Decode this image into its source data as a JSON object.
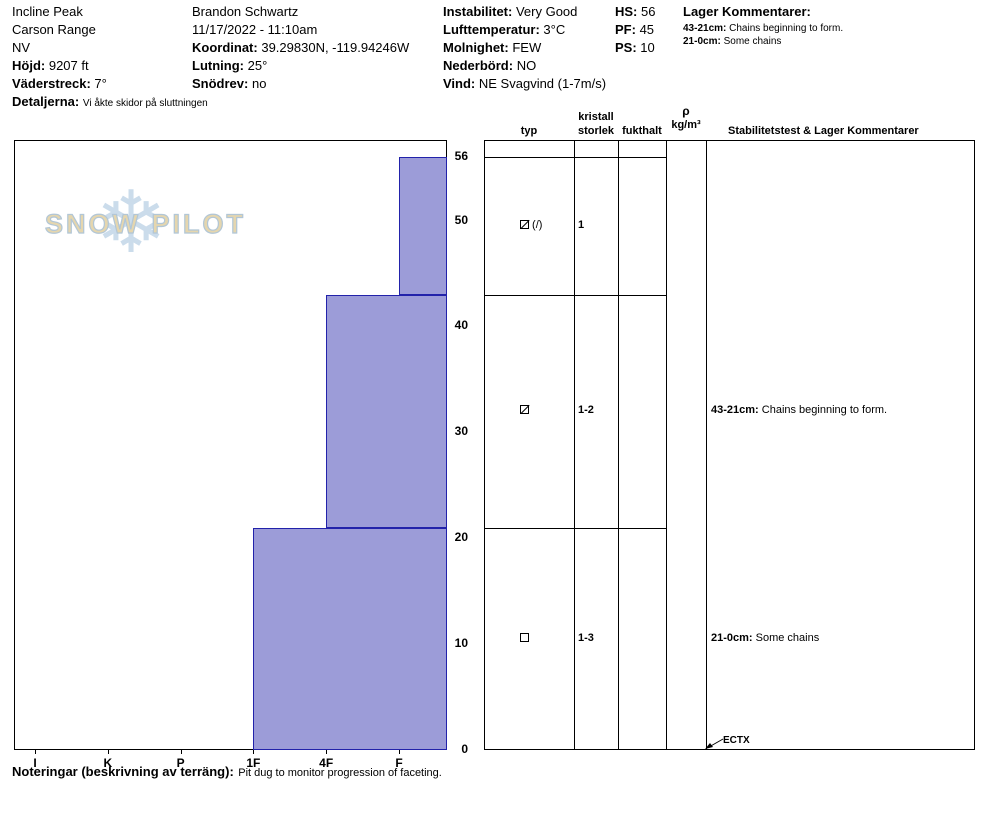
{
  "header": {
    "site": {
      "name": "Incline Peak",
      "range": "Carson Range",
      "state": "NV",
      "elevation_label": "Höjd:",
      "elevation_value": "9207 ft",
      "aspect_label": "Väderstreck:",
      "aspect_value": "7°",
      "details_label": "Detaljerna:",
      "details_value": "Vi åkte skidor på sluttningen"
    },
    "observer": {
      "name": "Brandon Schwartz",
      "datetime": "11/17/2022 - 11:10am",
      "coord_label": "Koordinat:",
      "coord_value": "39.29830N, -119.94246W",
      "slope_label": "Lutning:",
      "slope_value": "25°",
      "snowdrift_label": "Snödrev:",
      "snowdrift_value": "no"
    },
    "weather": {
      "instability_label": "Instabilitet:",
      "instability_value": "Very Good",
      "airtemp_label": "Lufttemperatur:",
      "airtemp_value": "3°C",
      "sky_label": "Molnighet:",
      "sky_value": "FEW",
      "precip_label": "Nederbörd:",
      "precip_value": "NO",
      "wind_label": "Vind:",
      "wind_value": "NE Svagvind (1-7m/s)"
    },
    "totals": {
      "hs_label": "HS:",
      "hs_value": "56",
      "pf_label": "PF:",
      "pf_value": "45",
      "ps_label": "PS:",
      "ps_value": "10"
    },
    "layer_comments": {
      "title": "Lager Kommentarer:",
      "lines": [
        {
          "label": "43-21cm:",
          "text": "Chains beginning to form."
        },
        {
          "label": "21-0cm:",
          "text": "Some chains"
        }
      ]
    }
  },
  "logo": {
    "text": "SNOW PILOT",
    "snowflake": "❄"
  },
  "panel": {
    "kristall": "kristall",
    "typ": "typ",
    "storlek": "storlek",
    "fukthalt": "fukthalt",
    "rho": "ρ",
    "rho_unit": "kg/m³",
    "comments_header": "Stabilitetstest & Lager Kommentarer"
  },
  "chart_data": {
    "type": "bar",
    "subtype": "snow-hardness-profile",
    "title": "Snow pit hardness profile",
    "depth_unit": "cm",
    "total_depth_cm": 56,
    "depth_ticks": [
      0,
      10,
      20,
      30,
      40,
      50,
      56
    ],
    "hardness_categories": [
      "I",
      "K",
      "P",
      "1F",
      "4F",
      "F"
    ],
    "bar_fill": "#9c9cd8",
    "bar_border": "#2222aa",
    "layers": [
      {
        "top_cm": 56,
        "bottom_cm": 43,
        "hardness": "F",
        "grain_symbol": "square-slash",
        "grain_suffix": "(/)",
        "grain_size": "1",
        "comment_label": "",
        "comment": ""
      },
      {
        "top_cm": 43,
        "bottom_cm": 21,
        "hardness": "4F",
        "grain_symbol": "square-slash",
        "grain_suffix": "",
        "grain_size": "1-2",
        "comment_label": "43-21cm:",
        "comment": "Chains beginning to form."
      },
      {
        "top_cm": 21,
        "bottom_cm": 0,
        "hardness": "1F",
        "grain_symbol": "square",
        "grain_suffix": "",
        "grain_size": "1-3",
        "comment_label": "21-0cm:",
        "comment": "Some chains"
      }
    ],
    "stability_test": "ECTX"
  },
  "footer": {
    "label": "Noteringar (beskrivning av terräng):",
    "text": "Pit dug to monitor progression of faceting."
  }
}
